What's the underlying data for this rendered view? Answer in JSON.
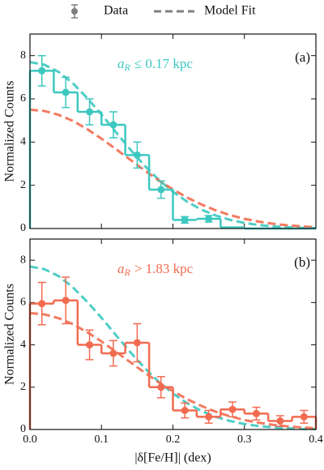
{
  "legend": {
    "entries": [
      {
        "label": "Data",
        "color": "#7f7f7f"
      },
      {
        "label": "Model Fit",
        "color": "#7f7f7f"
      }
    ]
  },
  "chart_data": [
    {
      "type": "histogram",
      "panel_label": "(a)",
      "ylabel": "Normalized Counts",
      "annotation": {
        "symbol": "a",
        "subscript": "R",
        "text": "≤ 0.17 kpc"
      },
      "annotation_color": "#3cc8c0",
      "color": "#3cc8c0",
      "bins": [
        0,
        0.0333,
        0.0667,
        0.1,
        0.1333,
        0.1667,
        0.2,
        0.2333,
        0.2667,
        0.3,
        0.3333,
        0.3667,
        0.4
      ],
      "values": [
        7.3,
        6.3,
        5.4,
        4.8,
        3.4,
        1.8,
        0.4,
        0.45,
        0.05,
        0,
        0,
        0
      ],
      "errors": [
        0.7,
        0.7,
        0.6,
        0.6,
        0.6,
        0.4,
        0.15,
        0.15,
        null,
        null,
        null,
        null
      ],
      "models": [
        {
          "color": "#3cc8c0",
          "x": [
            0,
            0.02,
            0.04,
            0.06,
            0.08,
            0.1,
            0.12,
            0.14,
            0.16,
            0.18,
            0.2,
            0.22,
            0.24,
            0.26,
            0.28,
            0.3,
            0.32,
            0.34,
            0.36,
            0.38,
            0.4
          ],
          "values": [
            7.7,
            7.58,
            7.25,
            6.72,
            6.04,
            5.28,
            4.47,
            3.67,
            2.92,
            2.26,
            1.7,
            1.24,
            0.87,
            0.6,
            0.4,
            0.26,
            0.16,
            0.1,
            0.06,
            0.03,
            0.02
          ]
        },
        {
          "color": "#f26b50",
          "x": [
            0,
            0.02,
            0.04,
            0.06,
            0.08,
            0.1,
            0.12,
            0.14,
            0.16,
            0.18,
            0.2,
            0.22,
            0.24,
            0.26,
            0.28,
            0.3,
            0.32,
            0.34,
            0.36,
            0.38,
            0.4
          ],
          "values": [
            5.5,
            5.44,
            5.26,
            4.98,
            4.6,
            4.16,
            3.68,
            3.19,
            2.7,
            2.23,
            1.81,
            1.43,
            1.11,
            0.84,
            0.62,
            0.45,
            0.32,
            0.22,
            0.15,
            0.1,
            0.06
          ]
        }
      ],
      "xlim": [
        0,
        0.4
      ],
      "xticks": [
        0,
        0.1,
        0.2,
        0.3,
        0.4
      ],
      "ylim": [
        0,
        9
      ],
      "yticks": [
        0,
        2,
        4,
        6,
        8
      ]
    },
    {
      "type": "histogram",
      "panel_label": "(b)",
      "ylabel": "Normalized Counts",
      "xlabel": "|δ[Fe/H]| (dex)",
      "annotation": {
        "symbol": "a",
        "subscript": "R",
        "text": "> 1.83 kpc"
      },
      "annotation_color": "#f26b50",
      "color": "#f26b50",
      "bins": [
        0,
        0.0333,
        0.0667,
        0.1,
        0.1333,
        0.1667,
        0.2,
        0.2333,
        0.2667,
        0.3,
        0.3333,
        0.3667,
        0.4
      ],
      "values": [
        5.95,
        6.1,
        4.0,
        3.6,
        4.1,
        2.0,
        0.9,
        0.6,
        0.95,
        0.75,
        0.4,
        0.6
      ],
      "errors": [
        1.0,
        1.1,
        0.7,
        0.6,
        0.9,
        0.5,
        0.35,
        0.3,
        0.35,
        0.3,
        0.25,
        0.3
      ],
      "models": [
        {
          "color": "#3cc8c0",
          "x": [
            0,
            0.02,
            0.04,
            0.06,
            0.08,
            0.1,
            0.12,
            0.14,
            0.16,
            0.18,
            0.2,
            0.22,
            0.24,
            0.26,
            0.28,
            0.3,
            0.32,
            0.34,
            0.36,
            0.38,
            0.4
          ],
          "values": [
            7.7,
            7.58,
            7.25,
            6.72,
            6.04,
            5.28,
            4.47,
            3.67,
            2.92,
            2.26,
            1.7,
            1.24,
            0.87,
            0.6,
            0.4,
            0.26,
            0.16,
            0.1,
            0.06,
            0.03,
            0.02
          ]
        },
        {
          "color": "#f26b50",
          "x": [
            0,
            0.02,
            0.04,
            0.06,
            0.08,
            0.1,
            0.12,
            0.14,
            0.16,
            0.18,
            0.2,
            0.22,
            0.24,
            0.26,
            0.28,
            0.3,
            0.32,
            0.34,
            0.36,
            0.38,
            0.4
          ],
          "values": [
            5.5,
            5.44,
            5.26,
            4.98,
            4.6,
            4.16,
            3.68,
            3.19,
            2.7,
            2.23,
            1.81,
            1.43,
            1.11,
            0.84,
            0.62,
            0.45,
            0.32,
            0.22,
            0.15,
            0.1,
            0.06
          ]
        }
      ],
      "xlim": [
        0,
        0.4
      ],
      "xticks": [
        {
          "value": 0,
          "label": "0.0"
        },
        {
          "value": 0.1,
          "label": "0.1"
        },
        {
          "value": 0.2,
          "label": "0.2"
        },
        {
          "value": 0.3,
          "label": "0.3"
        },
        {
          "value": 0.4,
          "label": "0.4"
        }
      ],
      "ylim": [
        0,
        9
      ],
      "yticks": [
        0,
        2,
        4,
        6,
        8
      ]
    }
  ]
}
